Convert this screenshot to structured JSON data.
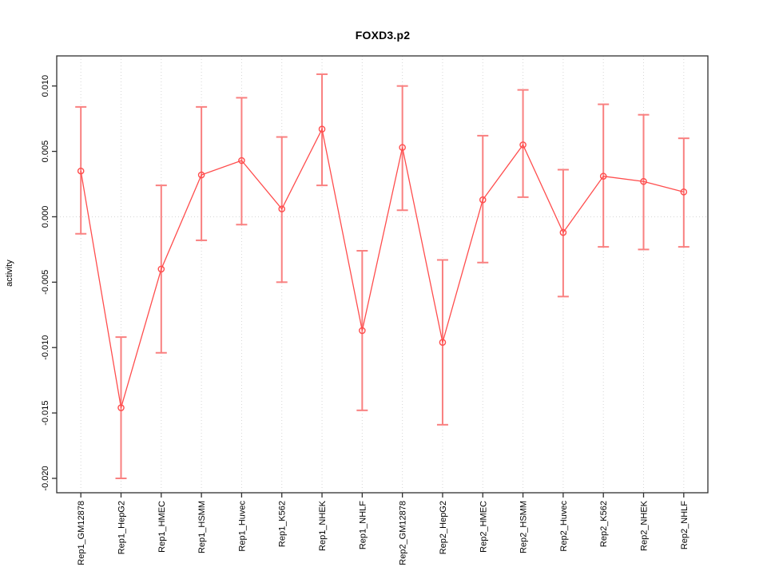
{
  "chart_data": {
    "type": "line",
    "title": "FOXD3.p2",
    "ylabel": "activity",
    "xlabel": "",
    "legend": "none",
    "grid": {
      "vertical_at_each_category": true,
      "horizontal_at_zero": true
    },
    "categories": [
      "Rep1_GM12878",
      "Rep1_HepG2",
      "Rep1_HMEC",
      "Rep1_HSMM",
      "Rep1_Huvec",
      "Rep1_K562",
      "Rep1_NHEK",
      "Rep1_NHLF",
      "Rep2_GM12878",
      "Rep2_HepG2",
      "Rep2_HMEC",
      "Rep2_HSMM",
      "Rep2_Huvec",
      "Rep2_K562",
      "Rep2_NHEK",
      "Rep2_NHLF"
    ],
    "series": [
      {
        "name": "activity",
        "marker": "open-circle",
        "values": [
          0.0035,
          -0.0146,
          -0.004,
          0.0032,
          0.0043,
          0.0006,
          0.0067,
          -0.0087,
          0.0053,
          -0.0096,
          0.0013,
          0.0055,
          -0.0012,
          0.0031,
          0.0027,
          0.0019
        ],
        "error_high": [
          0.0084,
          -0.0092,
          0.0024,
          0.0084,
          0.0091,
          0.0061,
          0.0109,
          -0.0026,
          0.01,
          -0.0033,
          0.0062,
          0.0097,
          0.0036,
          0.0086,
          0.0078,
          0.006
        ],
        "error_low": [
          -0.0013,
          -0.02,
          -0.0104,
          -0.0018,
          -0.0006,
          -0.005,
          0.0024,
          -0.0148,
          0.0005,
          -0.0159,
          -0.0035,
          0.0015,
          -0.0061,
          -0.0023,
          -0.0025,
          -0.0023
        ]
      }
    ],
    "ytick_labels": [
      "0.010",
      "0.005",
      "0.000",
      "-0.005",
      "-0.010",
      "-0.015",
      "-0.020"
    ],
    "ytick_values": [
      0.01,
      0.005,
      0.0,
      -0.005,
      -0.01,
      -0.015,
      -0.02
    ],
    "ylim": [
      -0.0211,
      0.0123
    ],
    "colors": {
      "series": "#ff4d4d",
      "error_bar": "#f98080",
      "grid": "#d6d6d6",
      "box": "#2f2f2f",
      "tick": "#2f2f2f",
      "text": "#000000",
      "background": "#ffffff"
    }
  }
}
